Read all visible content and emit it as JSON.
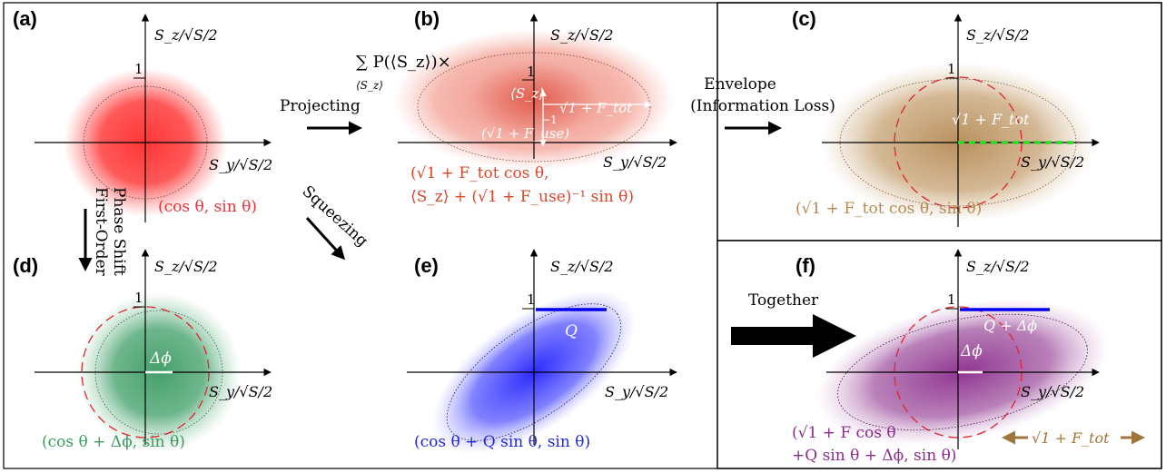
{
  "panels": [
    {
      "id": "a",
      "label": "(a)",
      "axis_y": "S_z/√S/2",
      "axis_x": "S_y/√S/2",
      "tick": "1",
      "formula": "(cos θ, sin θ)",
      "formula_color": "#e8323c"
    },
    {
      "id": "b",
      "label": "(b)",
      "axis_y": "S_z/√S/2",
      "axis_x": "S_y/√S/2",
      "tick": "1",
      "sum": "∑ P(⟨S_z⟩)×",
      "sum_index": "⟨S_z⟩",
      "inner_sz": "⟨S_z⟩",
      "inner_tot": "√1 + F_tot",
      "inner_minus1": "−1",
      "inner_use": "(√1 + F_use)",
      "formula_line1": "(√1 + F_tot cos θ,",
      "formula_line2": "⟨S_z⟩ + (√1 + F_use)⁻¹ sin θ)",
      "formula_color": "#d9482b"
    },
    {
      "id": "c",
      "label": "(c)",
      "axis_y": "S_z/√S/2",
      "axis_x": "S_y/√S/2",
      "tick": "1",
      "inner_tot": "√1 + F_tot",
      "formula": "(√1 + F_tot cos θ, sin θ)",
      "formula_color": "#b38a55"
    },
    {
      "id": "d",
      "label": "(d)",
      "axis_y": "S_z/√S/2",
      "axis_x": "S_y/√S/2",
      "tick": "1",
      "phase": "Δϕ",
      "formula": "(cos θ + Δϕ, sin θ)",
      "formula_color": "#3a9a5f"
    },
    {
      "id": "e",
      "label": "(e)",
      "axis_y": "S_z/√S/2",
      "axis_x": "S_y/√S/2",
      "tick": "1",
      "q": "Q",
      "formula": "(cos θ + Q sin θ, sin θ)",
      "formula_color": "#1f28e0"
    },
    {
      "id": "f",
      "label": "(f)",
      "axis_y": "S_z/√S/2",
      "axis_x": "S_y/√S/2",
      "tick": "1",
      "q_phase": "Q + Δϕ",
      "phase": "Δϕ",
      "formula_line1": "(√1 + F cos θ",
      "formula_line2": "+Q sin θ + Δϕ, sin θ)",
      "formula_color": "#8a2d8a",
      "side_label": "√1 + F_tot",
      "side_color": "#a0763c"
    }
  ],
  "arrows": {
    "projecting": "Projecting",
    "envelope_line1": "Envelope",
    "envelope_line2": "(Information Loss)",
    "first_order_line1": "First-Order",
    "first_order_line2": "Phase Shift",
    "squeezing": "Squeezing",
    "together": "Together"
  },
  "colors": {
    "red": "#ff3b3b",
    "brown": "#a07a4a",
    "green": "#3f9a63",
    "blue": "#2a2af0",
    "purple": "#8a2a8a",
    "dashed_circle": "#e0242a",
    "green_dashes": "#19e619"
  }
}
